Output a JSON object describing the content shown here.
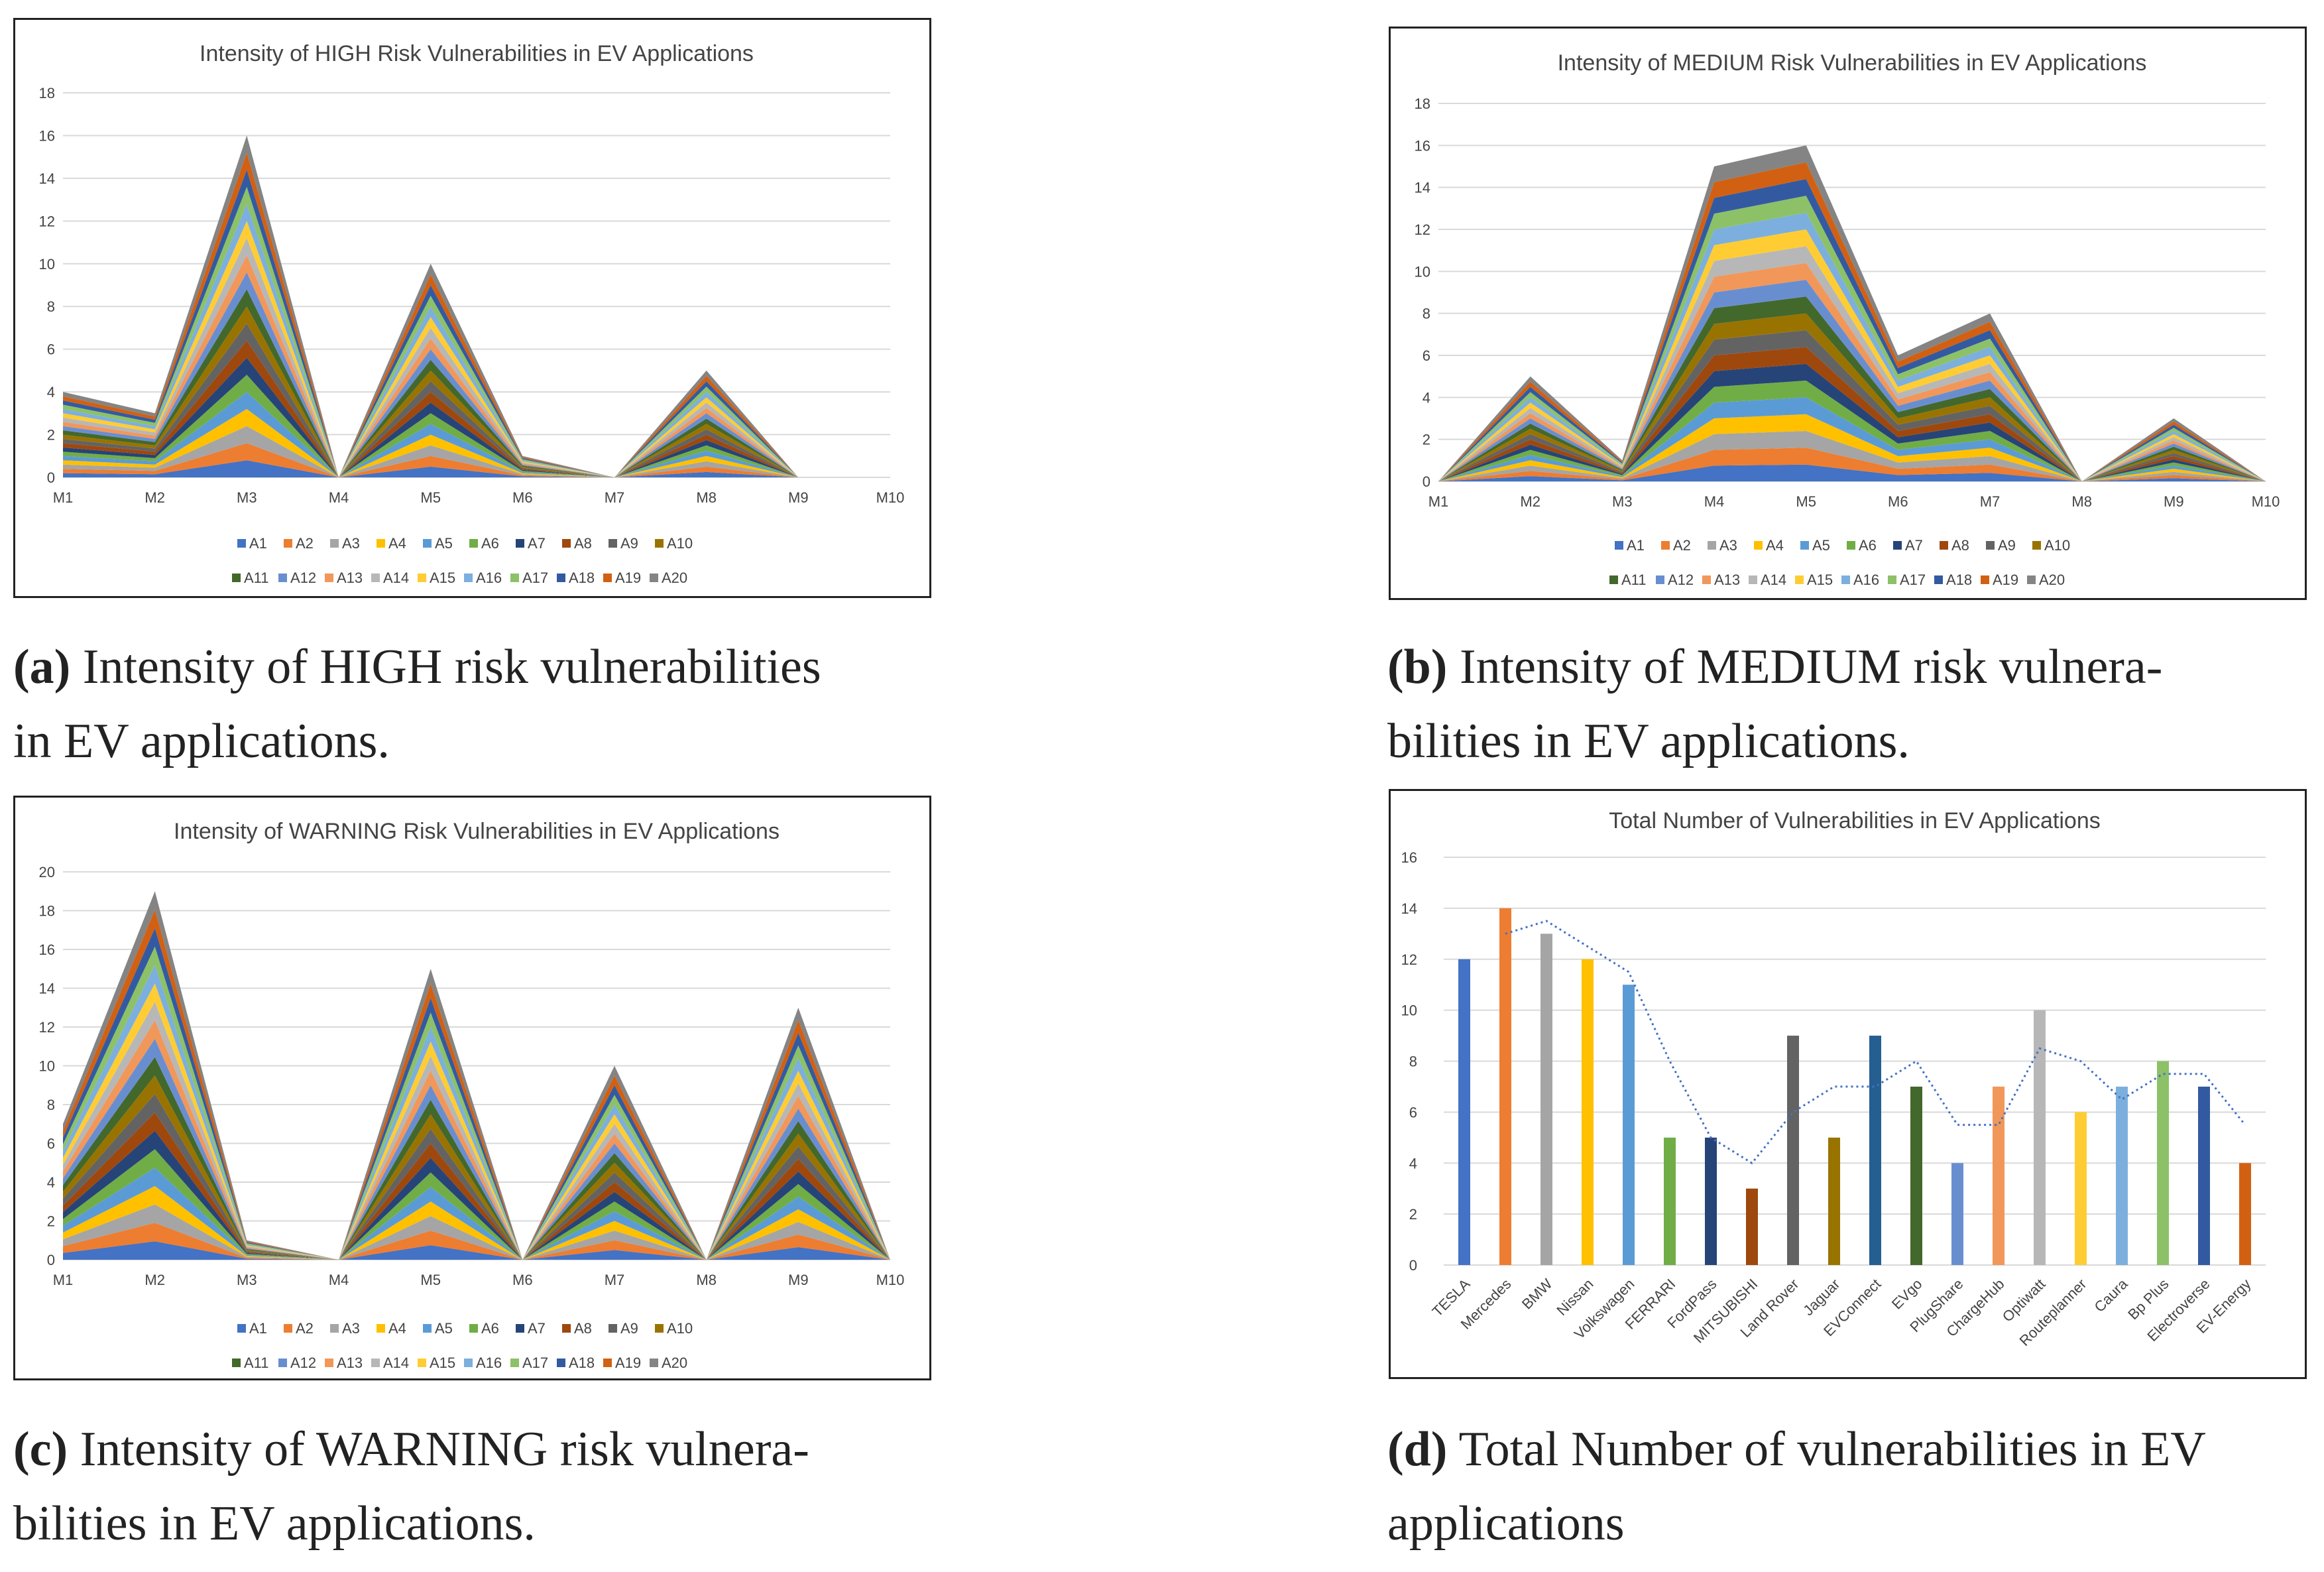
{
  "captions": [
    {
      "tag": "(a)",
      "line1": "Intensity of HIGH risk vulnerabilities",
      "line2": "in EV applications."
    },
    {
      "tag": "(b)",
      "line1": "Intensity of MEDIUM risk vulnera-",
      "line2": "bilities in EV applications."
    },
    {
      "tag": "(c)",
      "line1": "Intensity of WARNING risk vulnera-",
      "line2": "bilities in EV applications."
    },
    {
      "tag": "(d)",
      "line1": "Total Number of vulnerabilities in EV",
      "line2": "applications"
    }
  ],
  "palette": [
    "#4472C4",
    "#ED7D31",
    "#A5A5A5",
    "#FFC000",
    "#5B9BD5",
    "#70AD47",
    "#264478",
    "#9E480E",
    "#636363",
    "#997300",
    "#43682B",
    "#698ED0",
    "#F1975A",
    "#B7B7B7",
    "#FFCD33",
    "#7CAFDD",
    "#8CC168",
    "#335AA1",
    "#D26012",
    "#848484"
  ],
  "chart_data": [
    {
      "type": "area",
      "stacked": true,
      "title": "Intensity of HIGH Risk Vulnerabilities in EV Applications",
      "categories": [
        "M1",
        "M2",
        "M3",
        "M4",
        "M5",
        "M6",
        "M7",
        "M8",
        "M9",
        "M10"
      ],
      "y_ticks": [
        "0",
        "2",
        "4",
        "6",
        "8",
        "10",
        "12",
        "14",
        "16",
        "18"
      ],
      "ylim": [
        0,
        18
      ],
      "series_names": [
        "A1",
        "A2",
        "A3",
        "A4",
        "A5",
        "A6",
        "A7",
        "A8",
        "A9",
        "A10",
        "A11",
        "A12",
        "A13",
        "A14",
        "A15",
        "A16",
        "A17",
        "A18",
        "A19",
        "A20"
      ],
      "totals": [
        4,
        3,
        16,
        0,
        10,
        1,
        0,
        5,
        0,
        null
      ]
    },
    {
      "type": "area",
      "stacked": true,
      "title": "Intensity of MEDIUM Risk Vulnerabilities in EV Applications",
      "categories": [
        "M1",
        "M2",
        "M3",
        "M4",
        "M5",
        "M6",
        "M7",
        "M8",
        "M9",
        "M10"
      ],
      "y_ticks": [
        "0",
        "2",
        "4",
        "6",
        "8",
        "10",
        "12",
        "14",
        "16",
        "18"
      ],
      "ylim": [
        0,
        18
      ],
      "series_names": [
        "A1",
        "A2",
        "A3",
        "A4",
        "A5",
        "A6",
        "A7",
        "A8",
        "A9",
        "A10",
        "A11",
        "A12",
        "A13",
        "A14",
        "A15",
        "A16",
        "A17",
        "A18",
        "A19",
        "A20"
      ],
      "totals": [
        0,
        5,
        1,
        15,
        16,
        6,
        8,
        0,
        3,
        0
      ]
    },
    {
      "type": "area",
      "stacked": true,
      "title": "Intensity of WARNING Risk Vulnerabilities in EV Applications",
      "categories": [
        "M1",
        "M2",
        "M3",
        "M4",
        "M5",
        "M6",
        "M7",
        "M8",
        "M9",
        "M10"
      ],
      "y_ticks": [
        "0",
        "2",
        "4",
        "6",
        "8",
        "10",
        "12",
        "14",
        "16",
        "18",
        "20"
      ],
      "ylim": [
        0,
        20
      ],
      "series_names": [
        "A1",
        "A2",
        "A3",
        "A4",
        "A5",
        "A6",
        "A7",
        "A8",
        "A9",
        "A10",
        "A11",
        "A12",
        "A13",
        "A14",
        "A15",
        "A16",
        "A17",
        "A18",
        "A19",
        "A20"
      ],
      "totals": [
        7,
        19,
        1,
        0,
        15,
        0,
        10,
        0,
        13,
        0
      ]
    },
    {
      "type": "bar",
      "title": "Total Number of Vulnerabilities in EV Applications",
      "categories": [
        "TESLA",
        "Mercedes",
        "BMW",
        "Nissan",
        "Volkswagen",
        "FERRARI",
        "FordPass",
        "MITSUBISHI",
        "Land Rover",
        "Jaguar",
        "EVConnect",
        "EVgo",
        "PlugShare",
        "ChargeHub",
        "Optiwatt",
        "Routeplanner",
        "Caura",
        "Bp Plus",
        "Electroverse",
        "EV-Energy"
      ],
      "values": [
        12,
        14,
        13,
        12,
        11,
        5,
        5,
        3,
        9,
        5,
        9,
        7,
        4,
        7,
        10,
        6,
        7,
        8,
        7,
        4
      ],
      "trendline": [
        null,
        13,
        13.5,
        12.5,
        11.5,
        8,
        5,
        4,
        6,
        7,
        7,
        8,
        5.5,
        5.5,
        8.5,
        8,
        6.5,
        7.5,
        7.5,
        5.5
      ],
      "y_ticks": [
        "0",
        "2",
        "4",
        "6",
        "8",
        "10",
        "12",
        "14",
        "16"
      ],
      "ylim": [
        0,
        16
      ],
      "bar_colors": [
        "#4472C4",
        "#ED7D31",
        "#A5A5A5",
        "#FFC000",
        "#5B9BD5",
        "#70AD47",
        "#264478",
        "#9E480E",
        "#636363",
        "#997300",
        "#255E91",
        "#43682B",
        "#698ED0",
        "#F1975A",
        "#B7B7B7",
        "#FFCD33",
        "#7CAFDD",
        "#8CC168",
        "#335AA1",
        "#D26012"
      ],
      "trend_color": "#4472C4"
    }
  ]
}
